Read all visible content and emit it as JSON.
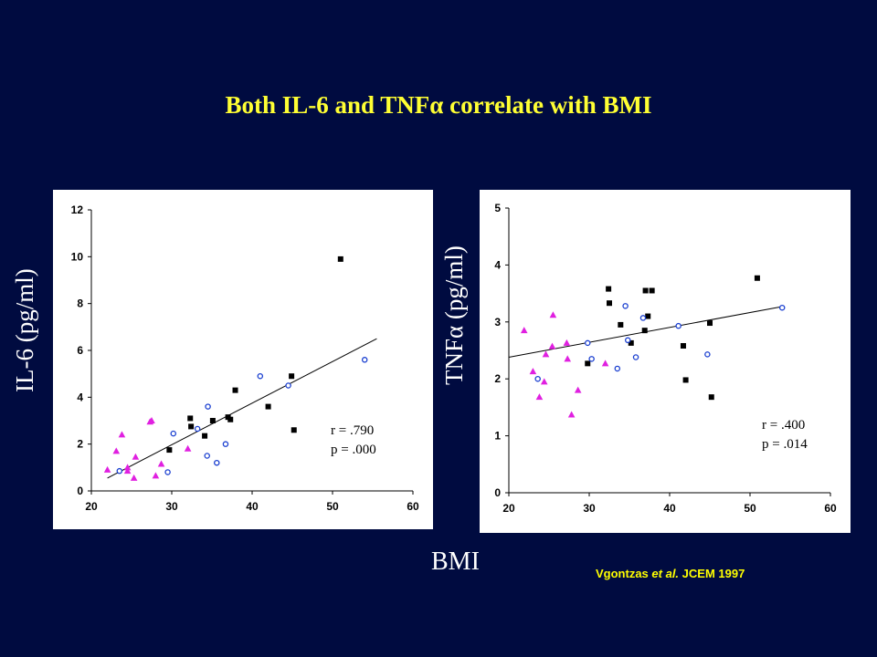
{
  "title": "Both IL-6 and TNFα correlate with BMI",
  "shared_xlabel": "BMI",
  "citation": {
    "author": "Vgontzas",
    "etal": "et al.",
    "journal": "JCEM 1997"
  },
  "colors": {
    "background": "#000b40",
    "title": "#ffff33",
    "square": "#000000",
    "circle": "#1a3fd0",
    "triangle": "#e020e0"
  },
  "chart_data": [
    {
      "type": "scatter",
      "ylabel": "IL-6 (pg/ml)",
      "xlabel": "",
      "xlim": [
        20,
        60
      ],
      "ylim": [
        0,
        12
      ],
      "xticks": [
        20,
        30,
        40,
        50,
        60
      ],
      "yticks": [
        0,
        2,
        4,
        6,
        8,
        10,
        12
      ],
      "stats": {
        "r": "r = .790",
        "p": "p = .000"
      },
      "trendline": [
        [
          22,
          0.55
        ],
        [
          55.5,
          6.5
        ]
      ],
      "series": [
        {
          "marker": "square",
          "points": [
            [
              29.7,
              1.75
            ],
            [
              32.3,
              3.1
            ],
            [
              32.4,
              2.75
            ],
            [
              34.1,
              2.35
            ],
            [
              35.1,
              3.0
            ],
            [
              37.0,
              3.15
            ],
            [
              37.3,
              3.05
            ],
            [
              37.9,
              4.3
            ],
            [
              42.0,
              3.6
            ],
            [
              44.9,
              4.9
            ],
            [
              45.2,
              2.6
            ],
            [
              51.0,
              9.9
            ]
          ]
        },
        {
          "marker": "circle",
          "points": [
            [
              23.5,
              0.85
            ],
            [
              29.5,
              0.8
            ],
            [
              30.2,
              2.45
            ],
            [
              33.2,
              2.65
            ],
            [
              34.4,
              1.5
            ],
            [
              34.5,
              3.6
            ],
            [
              35.6,
              1.2
            ],
            [
              36.7,
              2.0
            ],
            [
              41.0,
              4.9
            ],
            [
              44.5,
              4.5
            ],
            [
              54.0,
              5.6
            ]
          ]
        },
        {
          "marker": "triangle",
          "points": [
            [
              22.0,
              0.9
            ],
            [
              23.1,
              1.7
            ],
            [
              23.8,
              2.4
            ],
            [
              24.5,
              0.85
            ],
            [
              24.5,
              1.0
            ],
            [
              25.3,
              0.55
            ],
            [
              25.5,
              1.45
            ],
            [
              27.3,
              2.95
            ],
            [
              27.5,
              3.0
            ],
            [
              28.0,
              0.65
            ],
            [
              28.7,
              1.15
            ],
            [
              32.0,
              1.8
            ]
          ]
        }
      ]
    },
    {
      "type": "scatter",
      "ylabel": "TNFα (pg/ml)",
      "xlabel": "",
      "xlim": [
        20,
        60
      ],
      "ylim": [
        0,
        5
      ],
      "xticks": [
        20,
        30,
        40,
        50,
        60
      ],
      "yticks": [
        0,
        1,
        2,
        3,
        4,
        5
      ],
      "stats": {
        "r": "r = .400",
        "p": "p = .014"
      },
      "trendline": [
        [
          20,
          2.38
        ],
        [
          54,
          3.27
        ]
      ],
      "series": [
        {
          "marker": "square",
          "points": [
            [
              29.8,
              2.27
            ],
            [
              32.4,
              3.58
            ],
            [
              32.5,
              3.33
            ],
            [
              33.9,
              2.95
            ],
            [
              35.2,
              2.63
            ],
            [
              36.9,
              2.85
            ],
            [
              37.0,
              3.55
            ],
            [
              37.3,
              3.1
            ],
            [
              37.8,
              3.55
            ],
            [
              41.7,
              2.58
            ],
            [
              42.0,
              1.98
            ],
            [
              45.0,
              2.98
            ],
            [
              45.2,
              1.68
            ],
            [
              50.9,
              3.77
            ]
          ]
        },
        {
          "marker": "circle",
          "points": [
            [
              23.6,
              2.0
            ],
            [
              29.8,
              2.63
            ],
            [
              30.3,
              2.35
            ],
            [
              33.5,
              2.18
            ],
            [
              34.5,
              3.28
            ],
            [
              34.8,
              2.68
            ],
            [
              35.8,
              2.38
            ],
            [
              36.7,
              3.07
            ],
            [
              41.1,
              2.93
            ],
            [
              44.7,
              2.43
            ],
            [
              54.0,
              3.25
            ]
          ]
        },
        {
          "marker": "triangle",
          "points": [
            [
              21.9,
              2.85
            ],
            [
              23.0,
              2.13
            ],
            [
              23.8,
              1.68
            ],
            [
              24.4,
              1.95
            ],
            [
              24.6,
              2.43
            ],
            [
              25.4,
              2.57
            ],
            [
              25.5,
              3.12
            ],
            [
              27.2,
              2.63
            ],
            [
              27.3,
              2.35
            ],
            [
              27.8,
              1.37
            ],
            [
              28.6,
              1.8
            ],
            [
              32.0,
              2.27
            ]
          ]
        }
      ]
    }
  ]
}
